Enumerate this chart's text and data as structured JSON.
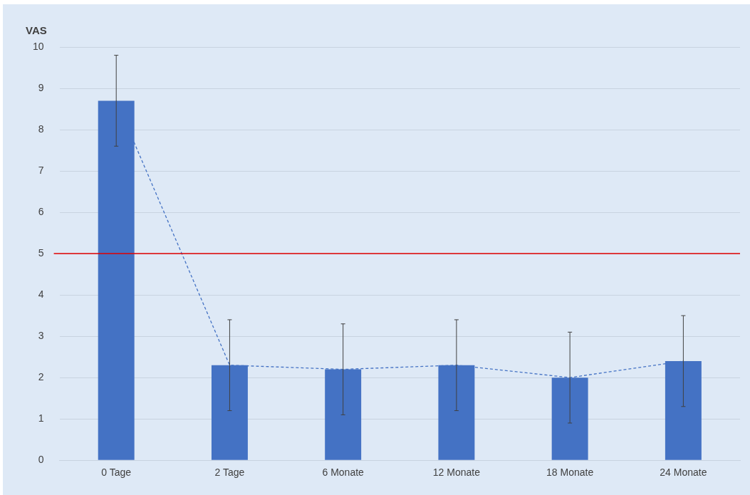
{
  "chart_data": {
    "type": "bar",
    "ylabel": "VAS",
    "categories": [
      "0 Tage",
      "2 Tage",
      "6 Monate",
      "12 Monate",
      "18 Monate",
      "24 Monate"
    ],
    "series": [
      {
        "color": "#4472c4",
        "values": [
          8.7,
          2.3,
          2.2,
          2.3,
          2.0,
          2.4
        ],
        "errors": [
          1.1,
          1.1,
          1.1,
          1.1,
          1.1,
          1.1
        ]
      },
      {
        "type": "line",
        "color": "#4472c4",
        "values": [
          8.7,
          2.3,
          2.2,
          2.3,
          2.0,
          2.4
        ],
        "line_style": "dashed",
        "marker": "none"
      }
    ],
    "ylim": [
      0,
      10
    ],
    "yticks": [
      0,
      1,
      2,
      3,
      4,
      5,
      6,
      7,
      8,
      9,
      10
    ],
    "grid": "y",
    "legend": false,
    "ref_lines": [
      {
        "axis": "y",
        "value": 5,
        "color": "#e00000"
      }
    ]
  }
}
